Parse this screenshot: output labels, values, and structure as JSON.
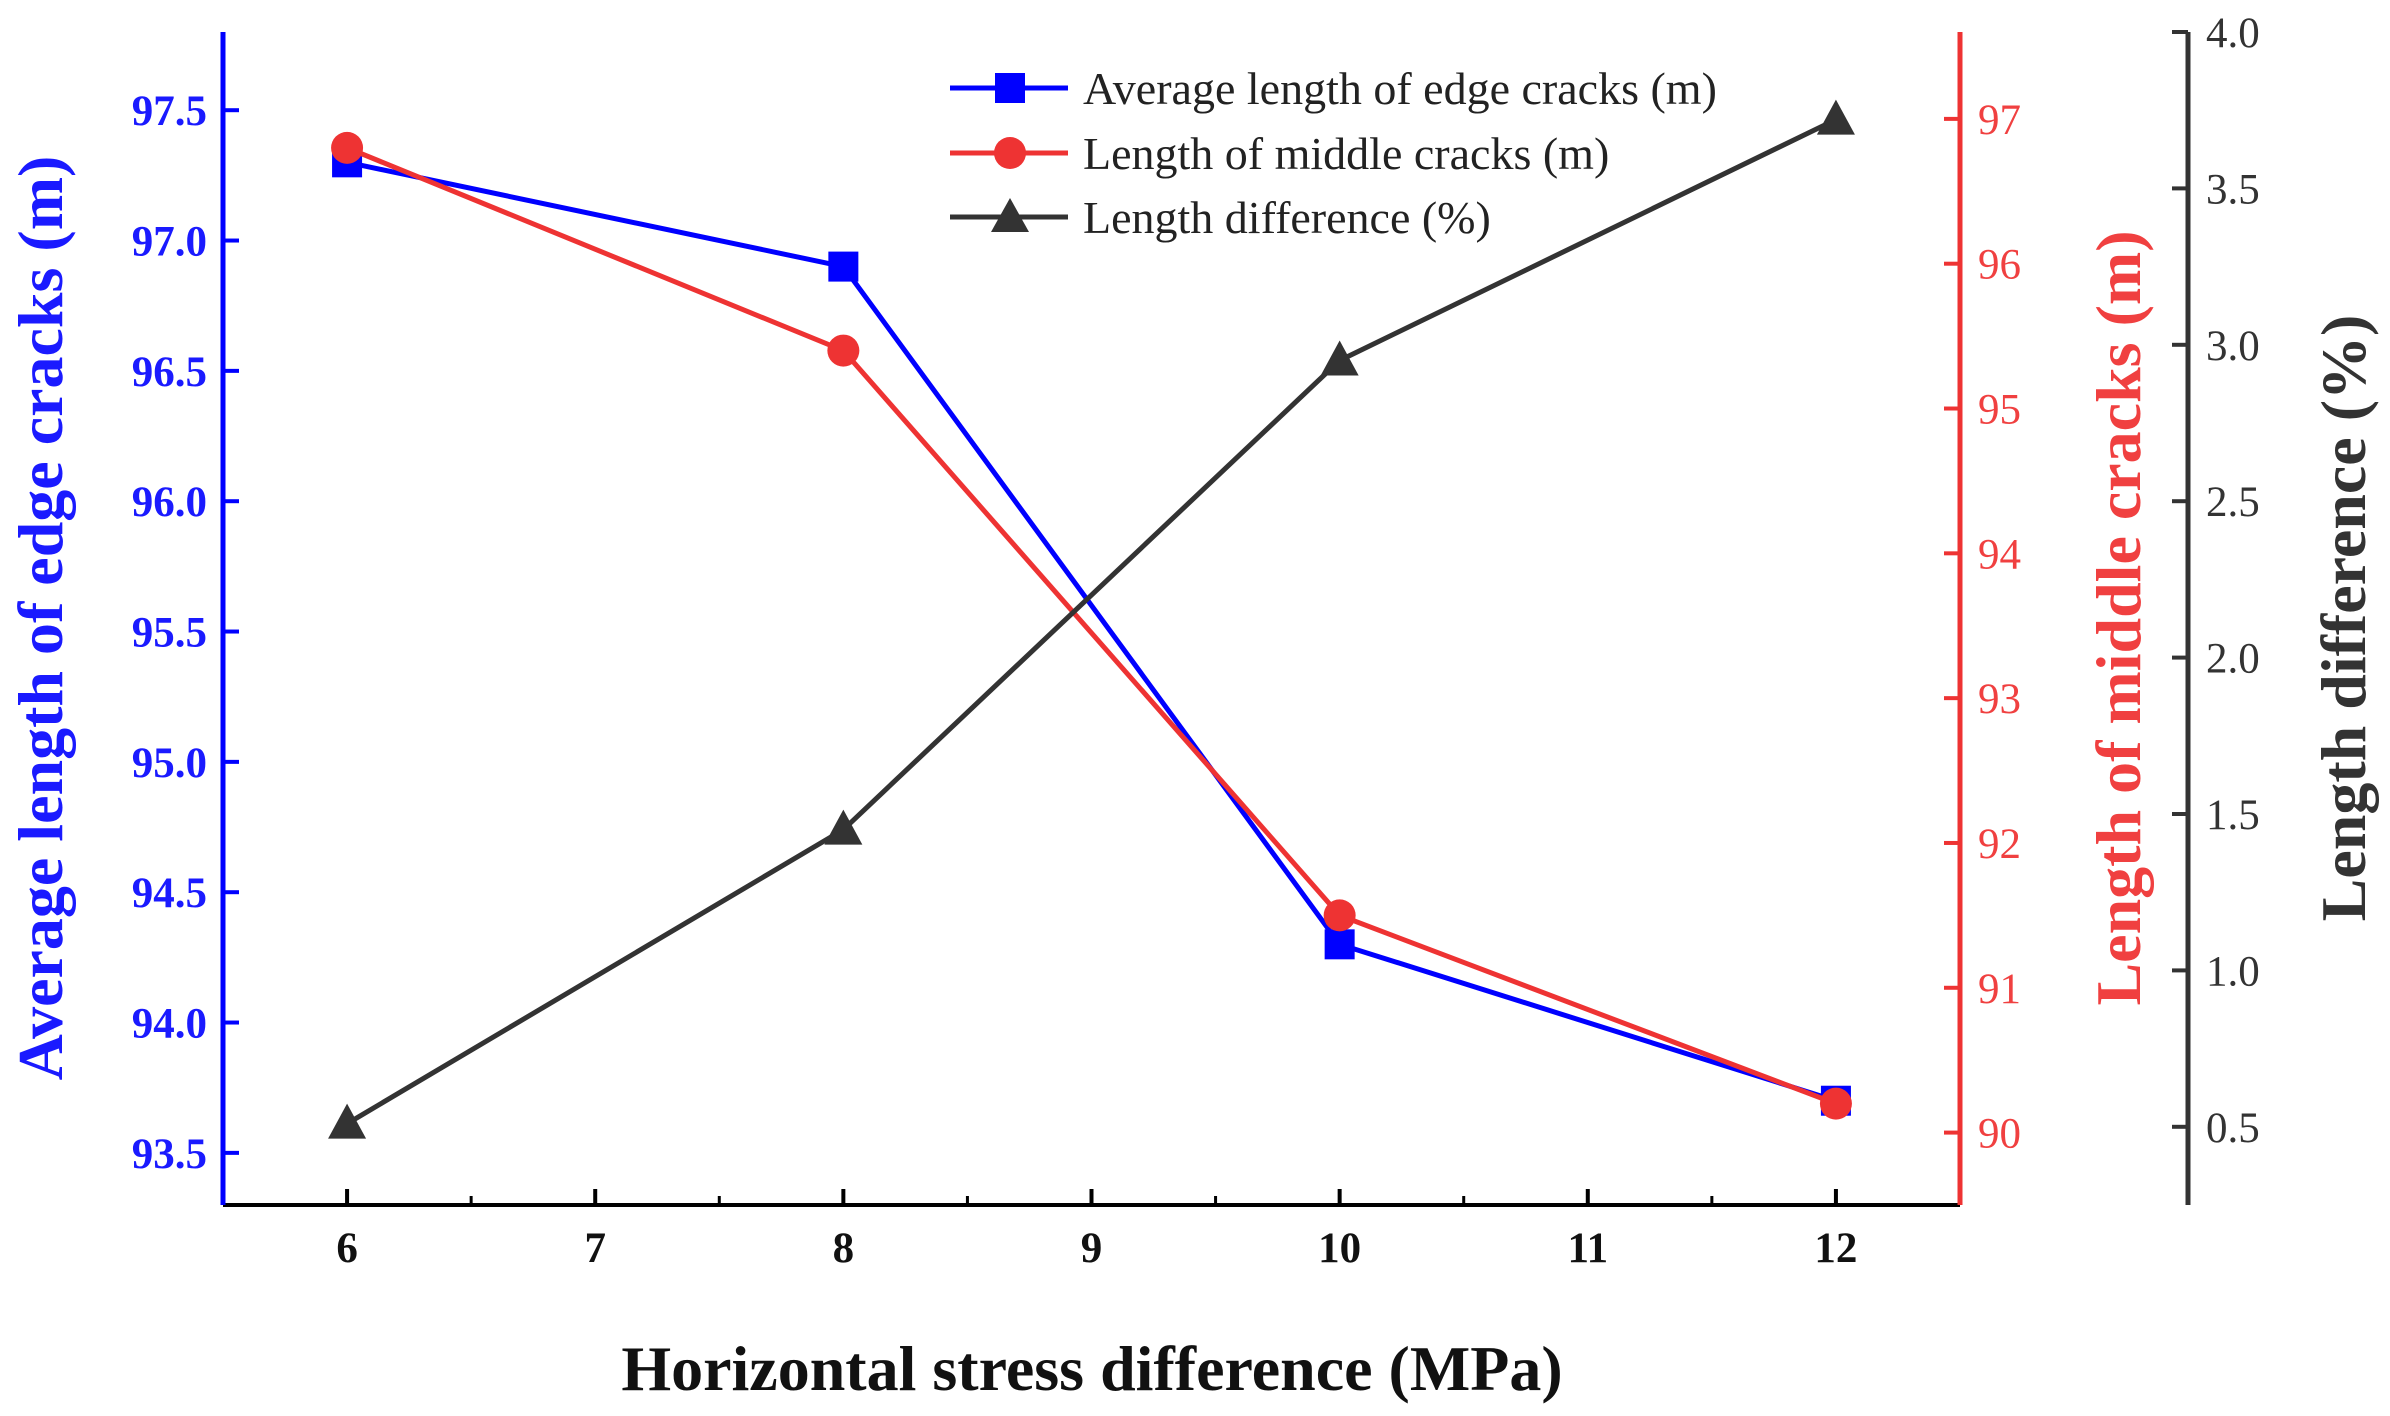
{
  "chart_data": {
    "type": "line",
    "x": [
      6,
      8,
      10,
      12
    ],
    "xlabel": "Horizontal stress difference (MPa)",
    "xlim": [
      5.5,
      12.5
    ],
    "xticks": [
      "6",
      "7",
      "8",
      "9",
      "10",
      "11",
      "12"
    ],
    "series": [
      {
        "name": "Average length of edge cracks (m)",
        "axis": "left",
        "color": "#0000ff",
        "marker": "square",
        "values": [
          97.3,
          96.9,
          94.3,
          93.7
        ]
      },
      {
        "name": "Length of middle cracks (m)",
        "axis": "right",
        "color": "#ee3333",
        "marker": "circle",
        "values": [
          96.8,
          95.4,
          91.5,
          90.2
        ]
      },
      {
        "name": "Length difference (%)",
        "axis": "right2",
        "color": "#333333",
        "marker": "triangle",
        "values": [
          0.51,
          1.45,
          2.95,
          3.72
        ]
      }
    ],
    "yaxes": {
      "left": {
        "label": "Average length of edge cracks (m)",
        "lim": [
          93.3,
          97.8
        ],
        "ticks": [
          "93.5",
          "94.0",
          "94.5",
          "95.0",
          "95.5",
          "96.0",
          "96.5",
          "97.0",
          "97.5"
        ],
        "color": "#1a1aff"
      },
      "right": {
        "label": "Length of middle cracks (m)",
        "lim": [
          89.5,
          97.6
        ],
        "ticks": [
          "90",
          "91",
          "92",
          "93",
          "94",
          "95",
          "96",
          "97"
        ],
        "color": "#f04040"
      },
      "right2": {
        "label": "Length difference (%)",
        "lim": [
          0.25,
          4.0
        ],
        "ticks": [
          "0.5",
          "1.0",
          "1.5",
          "2.0",
          "2.5",
          "3.0",
          "3.5",
          "4.0"
        ],
        "color": "#333333"
      }
    },
    "legend_position": "top-center"
  }
}
